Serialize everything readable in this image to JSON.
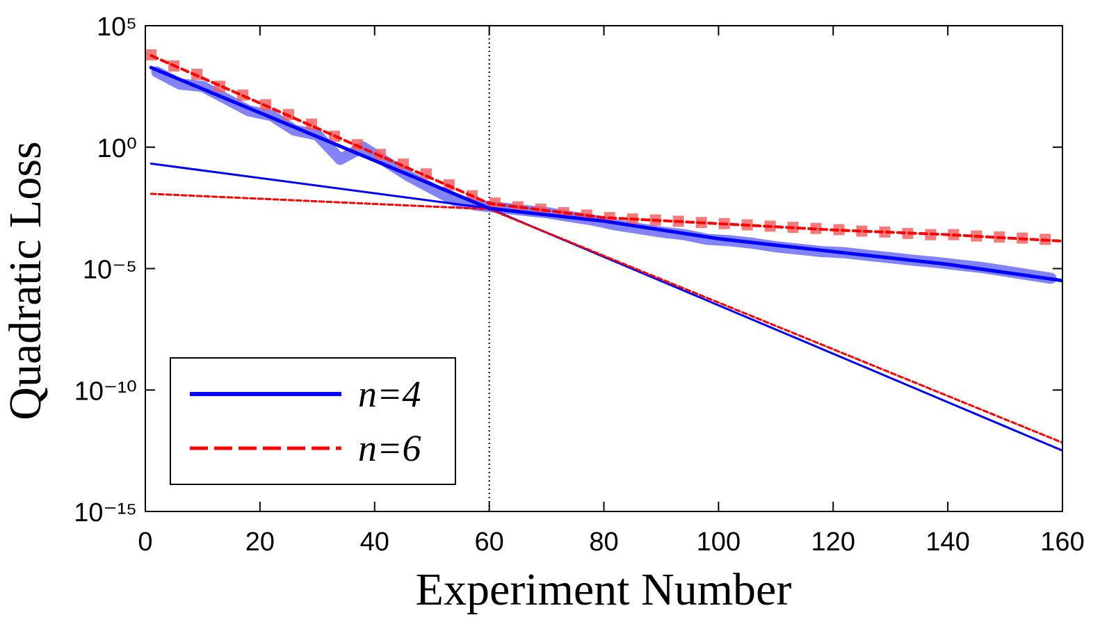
{
  "chart_data": {
    "type": "line",
    "xlabel": "Experiment Number",
    "ylabel": "Quadratic Loss",
    "xlim": [
      0,
      160
    ],
    "xticks": [
      0,
      20,
      40,
      60,
      80,
      100,
      120,
      140,
      160
    ],
    "ylim": [
      1e-15,
      100000.0
    ],
    "log_y": true,
    "yticks": [
      {
        "value": 1e-15,
        "label": "10⁻¹⁵"
      },
      {
        "value": 1e-10,
        "label": "10⁻¹⁰"
      },
      {
        "value": 1e-05,
        "label": "10⁻⁵"
      },
      {
        "value": 1,
        "label": "10⁰"
      },
      {
        "value": 100000.0,
        "label": "10⁵"
      }
    ],
    "vline": 60,
    "legend": "lower left",
    "series": [
      {
        "color": "#5a5af5",
        "style": "band",
        "x": [
          2,
          6,
          10,
          14,
          18,
          22,
          26,
          30,
          34,
          38,
          42,
          46,
          50,
          54,
          58,
          62,
          66,
          70,
          74,
          78,
          82,
          86,
          90,
          94,
          98,
          102,
          106,
          110,
          114,
          118,
          122,
          126,
          130,
          134,
          138,
          142,
          146,
          150,
          154,
          158
        ],
        "values": [
          1260.0,
          398,
          316,
          100,
          31.6,
          20,
          5.0,
          3.16,
          0.316,
          1,
          0.251,
          0.063,
          0.02,
          0.0063,
          0.004,
          0.0032,
          0.0025,
          0.002,
          0.0014,
          0.001,
          0.00063,
          0.00045,
          0.00032,
          0.00025,
          0.00016,
          0.00014,
          0.00011,
          7.9e-05,
          6.3e-05,
          5e-05,
          4.5e-05,
          3.5e-05,
          2.8e-05,
          2.2e-05,
          1.8e-05,
          1.4e-05,
          1.1e-05,
          7.9e-06,
          5.6e-06,
          4e-06
        ]
      },
      {
        "color": "#f05a5a",
        "style": "markers",
        "x": [
          1,
          5,
          9,
          13,
          17,
          21,
          25,
          29,
          33,
          37,
          41,
          45,
          49,
          53,
          57,
          61,
          65,
          69,
          73,
          77,
          81,
          85,
          89,
          93,
          97,
          101,
          105,
          109,
          113,
          117,
          121,
          125,
          129,
          133,
          137,
          141,
          145,
          149,
          153,
          157
        ],
        "values": [
          6300.0,
          2200.0,
          1000.0,
          320,
          140,
          56,
          22,
          8.9,
          2.8,
          1.26,
          0.5,
          0.2,
          0.079,
          0.028,
          0.01,
          0.005,
          0.0035,
          0.0028,
          0.002,
          0.0016,
          0.00126,
          0.0011,
          0.001,
          0.00089,
          0.00079,
          0.00071,
          0.00063,
          0.00056,
          0.0005,
          0.00045,
          0.0004,
          0.00035,
          0.00032,
          0.00028,
          0.00025,
          0.00025,
          0.00022,
          0.0002,
          0.00018,
          0.00016
        ]
      },
      {
        "color": "#0000ff",
        "style": "thin",
        "x": [
          1,
          60,
          160
        ],
        "values": [
          0.21,
          0.003,
          3.2e-13
        ]
      },
      {
        "color": "#ff0000",
        "style": "thin-dashed",
        "x": [
          1,
          60,
          160
        ],
        "values": [
          0.012,
          0.0028,
          6.8e-13
        ]
      },
      {
        "name": "n=4",
        "color": "#0000ff",
        "style": "solid",
        "x": [
          1,
          20,
          40,
          60,
          80,
          100,
          120,
          140,
          160
        ],
        "values": [
          1900.0,
          26,
          0.28,
          0.003,
          0.0009,
          0.00017,
          5e-05,
          1.5e-05,
          3.2e-06
        ]
      },
      {
        "name": "n=6",
        "color": "#ff0000",
        "style": "dashed",
        "x": [
          1,
          20,
          40,
          60,
          80,
          100,
          120,
          140,
          160
        ],
        "values": [
          5900.0,
          65,
          0.55,
          0.0048,
          0.00126,
          0.00071,
          0.00039,
          0.00025,
          0.000135
        ]
      }
    ]
  }
}
